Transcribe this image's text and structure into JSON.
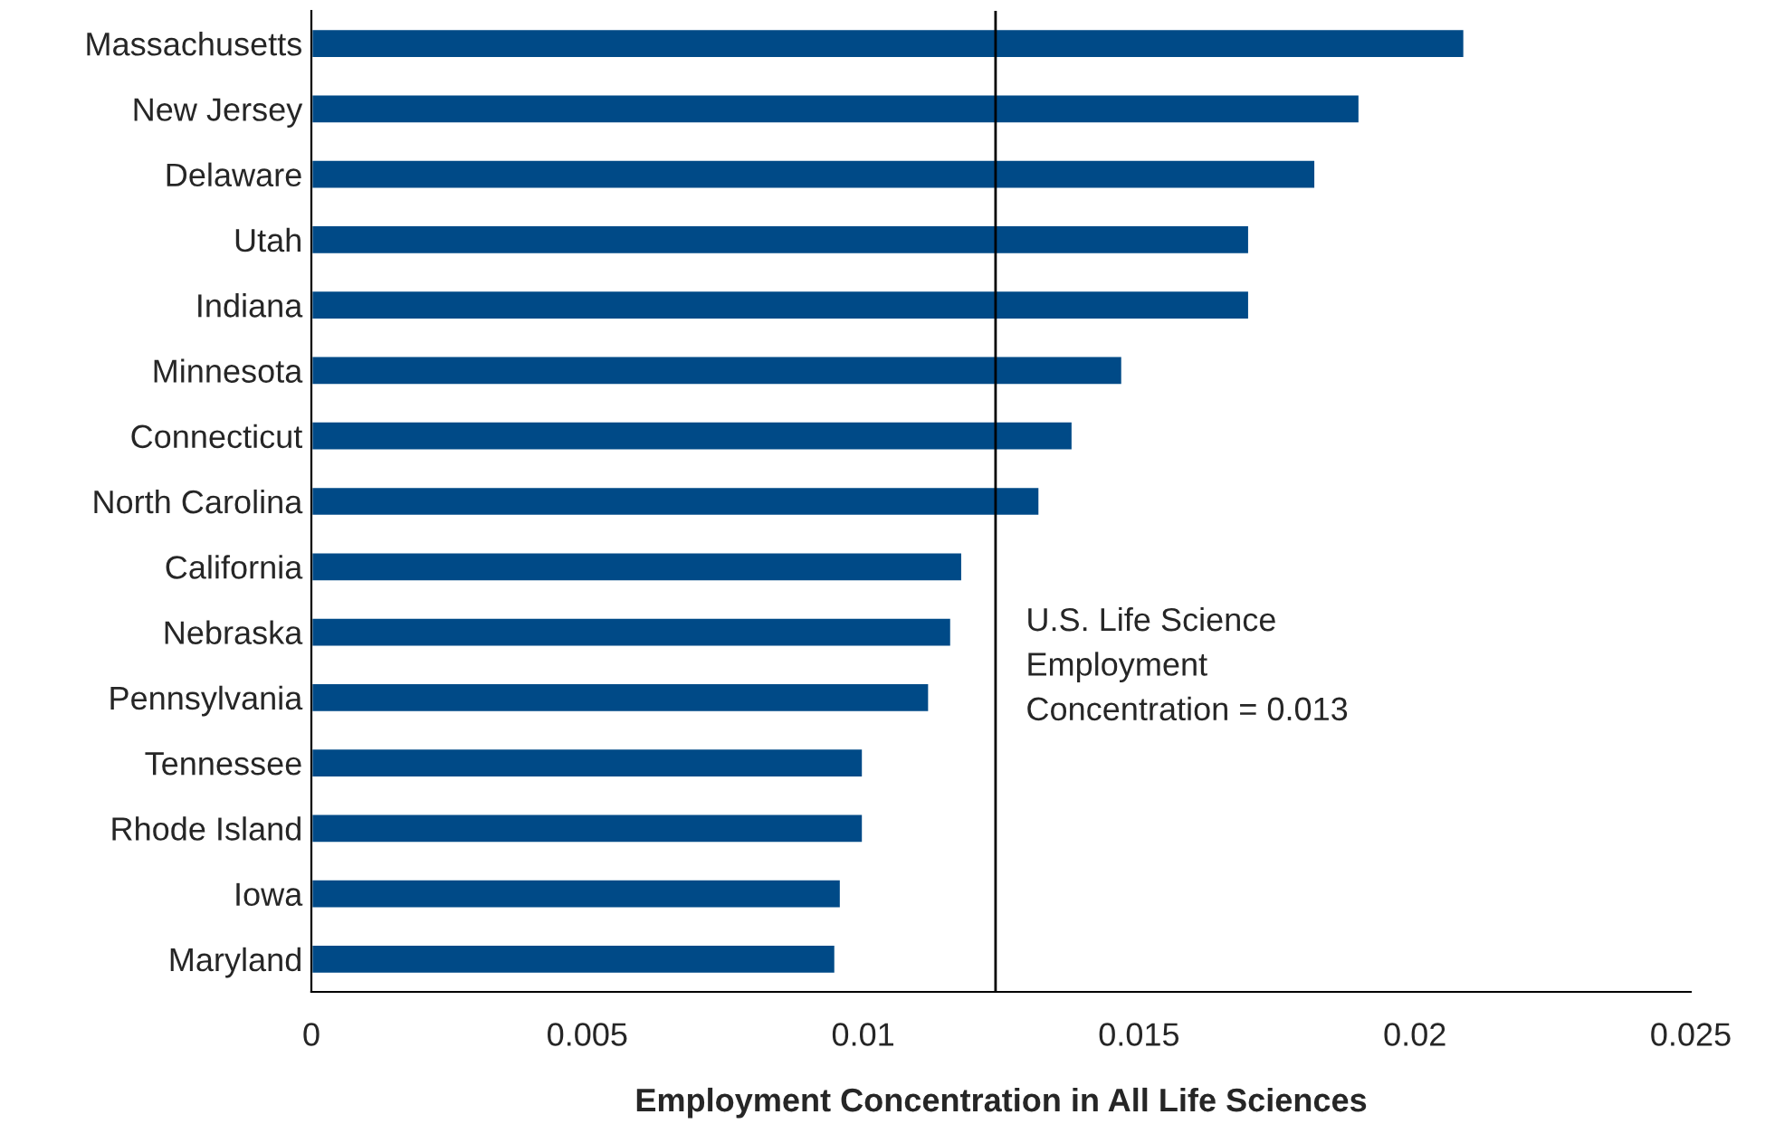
{
  "chart_data": {
    "type": "bar",
    "orientation": "horizontal",
    "xlabel": "Employment Concentration in All Life Sciences",
    "categories": [
      "Massachusetts",
      "New Jersey",
      "Delaware",
      "Utah",
      "Indiana",
      "Minnesota",
      "Connecticut",
      "North Carolina",
      "California",
      "Nebraska",
      "Pennsylvania",
      "Tennessee",
      "Rhode Island",
      "Iowa",
      "Maryland"
    ],
    "values": [
      0.0209,
      0.019,
      0.0182,
      0.017,
      0.017,
      0.0147,
      0.0138,
      0.0132,
      0.0118,
      0.0116,
      0.0112,
      0.01,
      0.01,
      0.0096,
      0.0095
    ],
    "color": "#004a87",
    "xlim": [
      0,
      0.025
    ],
    "xticks": [
      0,
      0.005,
      0.01,
      0.015,
      0.02,
      0.025
    ],
    "ref_lines": [
      {
        "axis": "x",
        "value": 0.0124,
        "color": "#000000"
      }
    ],
    "annotations": [
      "U.S. Life Science\nEmployment\nConcentration = 0.013"
    ],
    "grid": false,
    "legend": false
  }
}
